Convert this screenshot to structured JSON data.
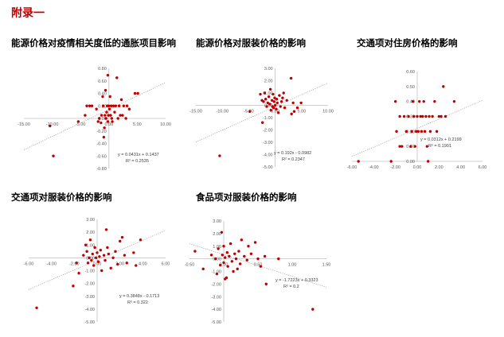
{
  "page": {
    "title": "附录一"
  },
  "colors": {
    "point": "#c00000",
    "axis": "#bfbfbf",
    "trend": "#a6a6a6"
  },
  "chart_data": [
    {
      "type": "scatter",
      "title": "能源价格对疫情相关度低的通胀项目影响",
      "xlim": [
        -15,
        10
      ],
      "ylim": [
        -0.8,
        0.8
      ],
      "xticks": [
        "-15.00",
        "-10.00",
        "-5.00",
        "0.00",
        "5.00",
        "10.00"
      ],
      "yticks": [
        "0.80",
        "0.60",
        "0.40",
        "0.20",
        "0.00",
        "-0.20",
        "-0.40",
        "-0.60",
        "-0.80"
      ],
      "xtick_values": [
        -15,
        -10,
        -5,
        0,
        5,
        10
      ],
      "ytick_values": [
        0.8,
        0.6,
        0.4,
        0.2,
        0,
        -0.2,
        -0.4,
        -0.6,
        -0.8
      ],
      "trendline": {
        "slope": 0.0431,
        "intercept": 0.1437
      },
      "equation": "y = 0.0431x + 0.1437",
      "r2": "R² = 0.2535",
      "points": [
        [
          -9.8,
          -0.6
        ],
        [
          -10.4,
          -0.12
        ],
        [
          -5.4,
          -0.05
        ],
        [
          -4.2,
          0.05
        ],
        [
          -3.9,
          0.2
        ],
        [
          -3.4,
          0.2
        ],
        [
          -3.0,
          0.2
        ],
        [
          -2.2,
          0.15
        ],
        [
          -1.9,
          -0.05
        ],
        [
          -1.7,
          0.0
        ],
        [
          -1.4,
          -0.07
        ],
        [
          -1.3,
          0.05
        ],
        [
          -1.1,
          0.35
        ],
        [
          -1.0,
          0.2
        ],
        [
          -0.9,
          -0.3
        ],
        [
          -0.8,
          -0.15
        ],
        [
          -0.7,
          0.05
        ],
        [
          -0.6,
          0.45
        ],
        [
          -0.5,
          0.0
        ],
        [
          -0.4,
          0.1
        ],
        [
          -0.3,
          0.2
        ],
        [
          -0.2,
          -0.05
        ],
        [
          -0.1,
          0.05
        ],
        [
          0.0,
          0.2
        ],
        [
          0.1,
          0.15
        ],
        [
          0.2,
          0.35
        ],
        [
          0.3,
          0.05
        ],
        [
          0.4,
          0.2
        ],
        [
          0.5,
          0.0
        ],
        [
          0.6,
          -0.05
        ],
        [
          0.8,
          0.2
        ],
        [
          1.0,
          0.1
        ],
        [
          1.2,
          0.2
        ],
        [
          1.4,
          0.65
        ],
        [
          1.6,
          0.0
        ],
        [
          1.8,
          0.2
        ],
        [
          2.0,
          0.05
        ],
        [
          2.2,
          0.3
        ],
        [
          2.4,
          0.05
        ],
        [
          2.6,
          0.2
        ],
        [
          3.0,
          0.0
        ],
        [
          3.2,
          0.2
        ],
        [
          3.6,
          0.15
        ],
        [
          4.6,
          0.4
        ],
        [
          5.1,
          0.4
        ],
        [
          -0.2,
          0.69
        ]
      ]
    },
    {
      "type": "scatter",
      "title": "能源价格对服装价格的影响",
      "xlim": [
        -15,
        10
      ],
      "ylim": [
        -5,
        3
      ],
      "xticks": [
        "-15.00",
        "-10.00",
        "-5.00",
        "0.00",
        "5.00",
        "10.00"
      ],
      "yticks": [
        "3.00",
        "2.00",
        "1.00",
        "0.00",
        "-1.00",
        "-2.00",
        "-3.00",
        "-4.00",
        "-5.00"
      ],
      "xtick_values": [
        -15,
        -10,
        -5,
        0,
        5,
        10
      ],
      "ytick_values": [
        3,
        2,
        1,
        0,
        -1,
        -2,
        -3,
        -4,
        -5
      ],
      "trendline": {
        "slope": 0.192,
        "intercept": -0.0982
      },
      "equation": "y = 0.192x - 0.0982",
      "r2": "R² = 0.2347",
      "points": [
        [
          -10.5,
          -4.1
        ],
        [
          -4.8,
          -0.5
        ],
        [
          -2.8,
          0.9
        ],
        [
          -2.5,
          0.4
        ],
        [
          -2.4,
          -1.4
        ],
        [
          -2.2,
          0.3
        ],
        [
          -2.0,
          1.0
        ],
        [
          -1.8,
          0.5
        ],
        [
          -1.6,
          -0.1
        ],
        [
          -1.4,
          0.2
        ],
        [
          -1.2,
          0.7
        ],
        [
          -1.0,
          0.1
        ],
        [
          -0.9,
          1.3
        ],
        [
          -0.8,
          -0.4
        ],
        [
          -0.6,
          0.4
        ],
        [
          -0.5,
          -0.1
        ],
        [
          -0.4,
          0.9
        ],
        [
          -0.3,
          -0.2
        ],
        [
          -0.2,
          0.3
        ],
        [
          -0.1,
          0.6
        ],
        [
          0.0,
          0.0
        ],
        [
          0.2,
          -0.3
        ],
        [
          0.3,
          0.5
        ],
        [
          0.4,
          0.2
        ],
        [
          0.6,
          -0.6
        ],
        [
          0.8,
          0.8
        ],
        [
          1.0,
          -0.1
        ],
        [
          1.2,
          0.3
        ],
        [
          1.4,
          0.6
        ],
        [
          1.6,
          1.0
        ],
        [
          1.8,
          -0.2
        ],
        [
          2.2,
          0.4
        ],
        [
          3.0,
          2.2
        ],
        [
          3.4,
          0.2
        ],
        [
          3.6,
          -0.5
        ],
        [
          4.2,
          -0.2
        ],
        [
          4.9,
          0.2
        ],
        [
          3.1,
          -0.7
        ]
      ]
    },
    {
      "type": "scatter",
      "title": "交通项对住房价格的影响",
      "xlim": [
        -6,
        6
      ],
      "ylim": [
        0,
        0.6
      ],
      "xticks": [
        "-6.00",
        "-4.00",
        "-2.00",
        "0.00",
        "2.00",
        "4.00",
        "6.00"
      ],
      "yticks": [
        "0.60",
        "0.50",
        "0.40",
        "0.30",
        "0.20",
        "0.10",
        "0.00"
      ],
      "xtick_values": [
        -6,
        -4,
        -2,
        0,
        2,
        4,
        6
      ],
      "ytick_values": [
        0.6,
        0.5,
        0.4,
        0.3,
        0.2,
        0.1,
        0
      ],
      "trendline": {
        "slope": 0.0312,
        "intercept": 0.2199
      },
      "equation": "y = 0.0312x + 0.2199",
      "r2": "R² = 0.1901",
      "points": [
        [
          -5.4,
          0.0
        ],
        [
          -2.4,
          0.0
        ],
        [
          -2.0,
          0.4
        ],
        [
          -1.9,
          0.2
        ],
        [
          -1.6,
          0.3
        ],
        [
          -1.4,
          0.1
        ],
        [
          -1.2,
          0.3
        ],
        [
          -1.0,
          0.2
        ],
        [
          -0.8,
          0.3
        ],
        [
          -0.6,
          0.1
        ],
        [
          -0.5,
          0.2
        ],
        [
          -0.4,
          0.4
        ],
        [
          -0.3,
          0.3
        ],
        [
          -0.2,
          0.1
        ],
        [
          -0.1,
          0.2
        ],
        [
          0.0,
          0.3
        ],
        [
          0.1,
          0.2
        ],
        [
          0.2,
          0.4
        ],
        [
          0.3,
          0.3
        ],
        [
          0.4,
          0.2
        ],
        [
          0.5,
          0.3
        ],
        [
          0.6,
          0.4
        ],
        [
          0.7,
          0.2
        ],
        [
          0.8,
          0.3
        ],
        [
          0.9,
          0.1
        ],
        [
          1.0,
          0.0
        ],
        [
          1.1,
          0.3
        ],
        [
          1.2,
          0.2
        ],
        [
          1.4,
          0.3
        ],
        [
          1.6,
          0.4
        ],
        [
          1.8,
          0.2
        ],
        [
          2.0,
          0.3
        ],
        [
          2.2,
          0.3
        ],
        [
          2.4,
          0.5
        ],
        [
          2.6,
          0.3
        ],
        [
          3.4,
          0.4
        ],
        [
          -1.6,
          0.1
        ]
      ]
    },
    {
      "type": "scatter",
      "title": "交通项对服装价格的影响",
      "xlim": [
        -6,
        6
      ],
      "ylim": [
        -5,
        3
      ],
      "xticks": [
        "-6.00",
        "-4.00",
        "-2.00",
        "0.00",
        "2.00",
        "4.00",
        "6.00"
      ],
      "yticks": [
        "3.00",
        "2.00",
        "1.00",
        "0.00",
        "-1.00",
        "-2.00",
        "-3.00",
        "-4.00",
        "-5.00"
      ],
      "xtick_values": [
        -6,
        -4,
        -2,
        0,
        2,
        4,
        6
      ],
      "ytick_values": [
        3,
        2,
        1,
        0,
        -1,
        -2,
        -3,
        -4,
        -5
      ],
      "trendline": {
        "slope": 0.3848,
        "intercept": -0.1713
      },
      "equation": "y = 0.3848x - 0.1713",
      "r2": "R² = 0.322",
      "points": [
        [
          -5.3,
          -3.9
        ],
        [
          -2.1,
          -2.2
        ],
        [
          -1.8,
          -0.4
        ],
        [
          -1.6,
          -1.2
        ],
        [
          -1.2,
          0.2
        ],
        [
          -1.0,
          1.0
        ],
        [
          -0.9,
          0.5
        ],
        [
          -0.8,
          -0.4
        ],
        [
          -0.7,
          0.0
        ],
        [
          -0.6,
          1.4
        ],
        [
          -0.5,
          -0.2
        ],
        [
          -0.4,
          0.3
        ],
        [
          -0.3,
          -0.6
        ],
        [
          -0.2,
          0.8
        ],
        [
          -0.1,
          0.0
        ],
        [
          0.0,
          0.4
        ],
        [
          0.1,
          -0.3
        ],
        [
          0.2,
          0.1
        ],
        [
          0.3,
          0.6
        ],
        [
          0.4,
          -1.0
        ],
        [
          0.6,
          0.2
        ],
        [
          0.7,
          -0.2
        ],
        [
          0.8,
          2.2
        ],
        [
          0.9,
          0.8
        ],
        [
          1.0,
          0.3
        ],
        [
          1.2,
          -0.8
        ],
        [
          1.4,
          0.0
        ],
        [
          1.6,
          0.5
        ],
        [
          1.8,
          -0.5
        ],
        [
          2.0,
          1.3
        ],
        [
          2.2,
          1.6
        ],
        [
          2.4,
          0.2
        ],
        [
          2.6,
          -0.4
        ],
        [
          3.2,
          0.4
        ],
        [
          3.4,
          -0.6
        ],
        [
          3.8,
          1.4
        ]
      ]
    },
    {
      "type": "scatter",
      "title": "食品项对服装价格的影响",
      "xlim": [
        -0.5,
        1.5
      ],
      "ylim": [
        -5,
        3
      ],
      "xticks": [
        "-0.50",
        "0.00",
        "0.50",
        "1.00",
        "1.50"
      ],
      "yticks": [
        "3.00",
        "2.00",
        "1.00",
        "0.00",
        "-1.00",
        "-2.00",
        "-3.00",
        "-4.00",
        "-5.00"
      ],
      "xtick_values": [
        -0.5,
        0,
        0.5,
        1,
        1.5
      ],
      "ytick_values": [
        3,
        2,
        1,
        0,
        -1,
        -2,
        -3,
        -4,
        -5
      ],
      "trendline": {
        "slope": -1.7223,
        "intercept": 0.3323
      },
      "equation": "y = -1.7223x + 0.3323",
      "r2": "R² = 0.2",
      "points": [
        [
          -0.42,
          0.6
        ],
        [
          -0.3,
          -0.8
        ],
        [
          -0.18,
          0.3
        ],
        [
          -0.12,
          0.0
        ],
        [
          -0.1,
          -1.2
        ],
        [
          -0.08,
          0.8
        ],
        [
          -0.05,
          -0.5
        ],
        [
          -0.03,
          2.1
        ],
        [
          -0.02,
          0.3
        ],
        [
          0.0,
          -0.3
        ],
        [
          0.0,
          1.0
        ],
        [
          0.02,
          0.1
        ],
        [
          0.04,
          -1.5
        ],
        [
          0.05,
          0.5
        ],
        [
          0.06,
          -0.6
        ],
        [
          0.08,
          0.2
        ],
        [
          0.1,
          1.2
        ],
        [
          0.12,
          -0.2
        ],
        [
          0.14,
          -1.0
        ],
        [
          0.16,
          0.4
        ],
        [
          0.18,
          0.0
        ],
        [
          0.2,
          -0.8
        ],
        [
          0.22,
          0.6
        ],
        [
          0.24,
          -0.4
        ],
        [
          0.26,
          1.5
        ],
        [
          0.3,
          0.2
        ],
        [
          0.34,
          -0.1
        ],
        [
          0.36,
          1.0
        ],
        [
          0.4,
          0.4
        ],
        [
          0.46,
          1.3
        ],
        [
          0.5,
          0.0
        ],
        [
          0.54,
          -0.6
        ],
        [
          0.6,
          0.2
        ],
        [
          0.8,
          0.0
        ],
        [
          0.62,
          -2.0
        ],
        [
          1.3,
          -4.0
        ],
        [
          0.02,
          -1.6
        ]
      ]
    }
  ]
}
